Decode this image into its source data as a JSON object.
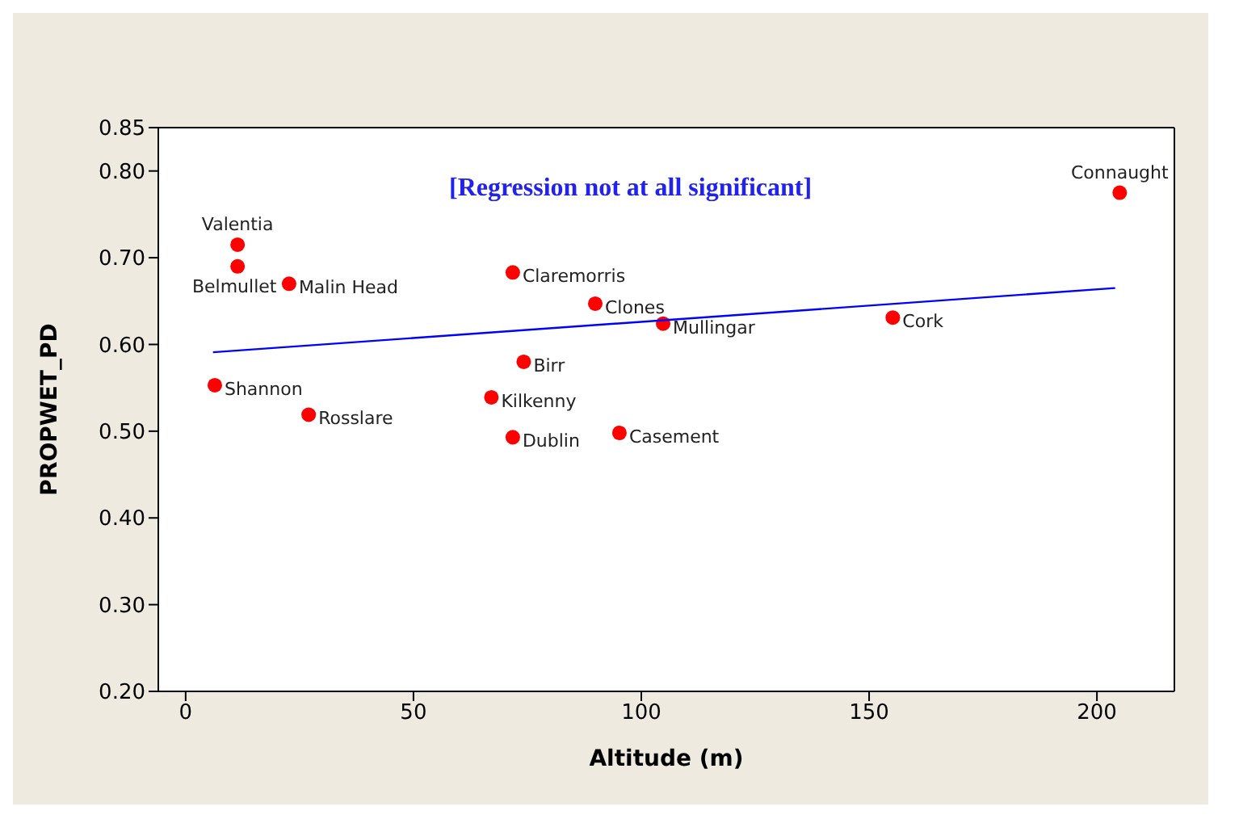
{
  "chart_data": {
    "type": "scatter",
    "xlabel": "Altitude (m)",
    "ylabel": "PROPWET_PD",
    "xlim": [
      -6,
      217
    ],
    "ylim": [
      0.2,
      0.85
    ],
    "xticks": [
      0,
      50,
      100,
      150,
      200
    ],
    "yticks": [
      {
        "value": 0.2,
        "label": "0.20"
      },
      {
        "value": 0.3,
        "label": "0.30"
      },
      {
        "value": 0.4,
        "label": "0.40"
      },
      {
        "value": 0.5,
        "label": "0.50"
      },
      {
        "value": 0.6,
        "label": "0.60"
      },
      {
        "value": 0.7,
        "label": "0.70"
      },
      {
        "value": 0.8,
        "label": "0.80"
      },
      {
        "value": 0.85,
        "label": "0.85"
      }
    ],
    "series": [
      {
        "marker": "circle",
        "color": "#ff0000",
        "x": [
          11.4,
          11.4,
          22.7,
          71.8,
          89.9,
          104.8,
          155.2,
          205,
          74.2,
          6.4,
          27,
          67.1,
          71.8,
          95.2
        ],
        "values": [
          0.715,
          0.69,
          0.67,
          0.683,
          0.647,
          0.624,
          0.631,
          0.775,
          0.58,
          0.553,
          0.519,
          0.539,
          0.493,
          0.498
        ]
      },
      {
        "type": "line",
        "marker": "none",
        "color": "#0000ff",
        "line_style": "solid",
        "x": [
          6,
          204
        ],
        "values": [
          0.591,
          0.665
        ]
      }
    ],
    "annotations": [
      "[Regression not at all significant]",
      {
        "text": "Valentia",
        "x": 11.4,
        "y": 0.715
      },
      {
        "text": "Belmullet",
        "x": 11.4,
        "y": 0.69
      },
      {
        "text": "Malin Head",
        "x": 22.7,
        "y": 0.67
      },
      {
        "text": "Claremorris",
        "x": 71.8,
        "y": 0.683
      },
      {
        "text": "Clones",
        "x": 89.9,
        "y": 0.647
      },
      {
        "text": "Mullingar",
        "x": 104.8,
        "y": 0.624
      },
      {
        "text": "Cork",
        "x": 155.2,
        "y": 0.631
      },
      {
        "text": "Connaught",
        "x": 205,
        "y": 0.775
      },
      {
        "text": "Birr",
        "x": 74.2,
        "y": 0.58
      },
      {
        "text": "Shannon",
        "x": 6.4,
        "y": 0.553
      },
      {
        "text": "Rosslare",
        "x": 27,
        "y": 0.519
      },
      {
        "text": "Kilkenny",
        "x": 67.1,
        "y": 0.539
      },
      {
        "text": "Dublin",
        "x": 71.8,
        "y": 0.493
      },
      {
        "text": "Casement",
        "x": 95.2,
        "y": 0.498
      }
    ]
  }
}
